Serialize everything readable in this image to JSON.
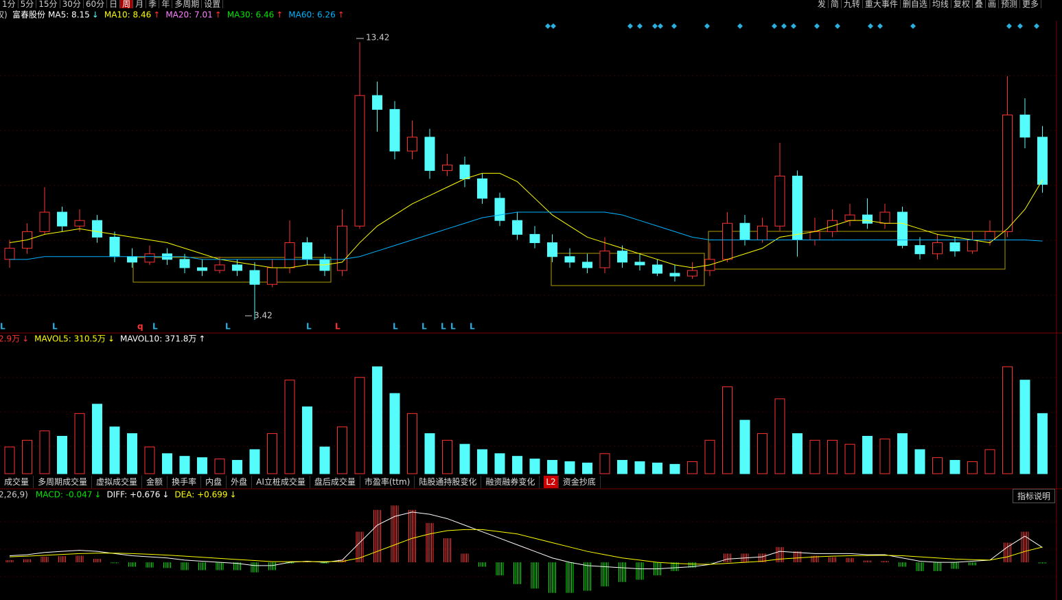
{
  "toolbar": {
    "periods": [
      "1分",
      "5分",
      "15分",
      "30分",
      "60分",
      "日",
      "周",
      "月",
      "季",
      "年",
      "多周期",
      "设置"
    ],
    "tools": [
      "发",
      "简",
      "九转",
      "重大事件",
      "删自选",
      "均线",
      "复权",
      "叠",
      "画",
      "预测",
      "更多"
    ]
  },
  "header": {
    "prefix": "权)",
    "name": "富春股份",
    "ma": [
      {
        "text": "MA5: 8.15",
        "arrow": "↓",
        "color": "#ffffff",
        "arrow_color": "#54fcfc"
      },
      {
        "text": "MA10: 8.46",
        "arrow": "↑",
        "color": "#ffff00",
        "arrow_color": "#ff3232"
      },
      {
        "text": "MA20: 7.01",
        "arrow": "↑",
        "color": "#ff80ff",
        "arrow_color": "#ff3232"
      },
      {
        "text": "MA30: 6.46",
        "arrow": "↑",
        "color": "#00e600",
        "arrow_color": "#ff3232"
      },
      {
        "text": "MA60: 6.26",
        "arrow": "↑",
        "color": "#00b4ff",
        "arrow_color": "#ff3232"
      }
    ]
  },
  "annotations": {
    "high": "13.42",
    "low": "3.42",
    "signals": [
      "L",
      "L",
      "q",
      "L",
      "L",
      "L",
      "L",
      "L",
      "L",
      "L",
      "L",
      "L"
    ]
  },
  "volume_header": [
    {
      "text": "2.9万",
      "arrow": "↓",
      "color": "#ff3232"
    },
    {
      "text": "MAVOL5: 310.5万",
      "arrow": "↓",
      "color": "#ffff00"
    },
    {
      "text": "MAVOL10: 371.8万",
      "arrow": "↑",
      "color": "#ffffff"
    }
  ],
  "tabs": [
    "成交量",
    "多周期成交量",
    "虚拟成交量",
    "金额",
    "换手率",
    "内盘",
    "外盘",
    "AI立桩成交量",
    "盘后成交量",
    "市盈率(ttm)",
    "陆股通持股变化",
    "融资融券变化",
    "L2",
    "资金抄底"
  ],
  "indicator_help": "指标说明",
  "macd_header": [
    {
      "text": "2,26,9)",
      "color": "#cccccc"
    },
    {
      "text": "MACD: -0.047",
      "arrow": "↓",
      "color": "#00e600"
    },
    {
      "text": "DIFF: +0.676",
      "arrow": "↓",
      "color": "#ffffff"
    },
    {
      "text": "DEA: +0.699",
      "arrow": "↓",
      "color": "#ffff00"
    }
  ],
  "chart_data": [
    {
      "type": "candlestick",
      "ylim": [
        3.0,
        14.0
      ],
      "up_color": "#ff3232",
      "down_color": "#54fcfc",
      "open": [
        5.6,
        6.0,
        6.6,
        7.3,
        6.8,
        7.0,
        6.4,
        5.7,
        5.5,
        5.8,
        5.6,
        5.3,
        5.2,
        5.4,
        5.2,
        4.7,
        5.3,
        6.2,
        5.6,
        5.2,
        6.8,
        11.5,
        11.0,
        9.5,
        10.0,
        8.8,
        9.0,
        8.5,
        7.8,
        7.0,
        6.5,
        6.2,
        5.7,
        5.5,
        5.3,
        5.9,
        5.5,
        5.4,
        5.1,
        5.0,
        5.2,
        5.6,
        6.9,
        6.3,
        6.8,
        8.6,
        6.3,
        6.6,
        7.0,
        7.2,
        6.9,
        7.3,
        6.1,
        5.8,
        6.2,
        5.9,
        6.3,
        6.6,
        10.8,
        10.0
      ],
      "high": [
        6.3,
        6.9,
        8.2,
        7.5,
        7.4,
        7.2,
        6.6,
        6.0,
        6.1,
        6.0,
        5.8,
        5.6,
        5.7,
        5.6,
        5.5,
        5.6,
        7.0,
        6.4,
        5.8,
        7.4,
        13.42,
        12.0,
        11.3,
        10.6,
        10.3,
        9.4,
        9.3,
        8.7,
        8.0,
        7.3,
        6.8,
        6.5,
        6.0,
        5.8,
        6.4,
        6.1,
        5.8,
        5.6,
        5.4,
        5.5,
        6.2,
        7.3,
        7.2,
        7.1,
        9.8,
        8.8,
        7.1,
        7.4,
        7.6,
        7.8,
        7.6,
        7.5,
        6.4,
        6.5,
        6.4,
        6.6,
        7.0,
        12.2,
        11.4,
        10.4
      ],
      "low": [
        5.3,
        5.8,
        6.5,
        6.6,
        6.6,
        6.2,
        5.5,
        5.3,
        5.4,
        5.4,
        5.1,
        5.0,
        5.1,
        5.0,
        3.42,
        4.6,
        5.1,
        5.4,
        5.0,
        5.0,
        6.7,
        10.2,
        9.2,
        9.2,
        8.5,
        8.6,
        8.2,
        7.6,
        6.8,
        6.3,
        6.0,
        5.5,
        5.3,
        5.1,
        5.1,
        5.3,
        5.2,
        5.0,
        4.8,
        4.9,
        5.0,
        5.5,
        6.1,
        6.2,
        6.6,
        5.7,
        6.1,
        6.4,
        6.8,
        6.7,
        6.7,
        6.0,
        5.6,
        5.6,
        5.7,
        5.8,
        6.1,
        6.4,
        9.6,
        8.0
      ],
      "close": [
        6.0,
        6.6,
        7.3,
        6.8,
        7.0,
        6.4,
        5.7,
        5.5,
        5.8,
        5.6,
        5.3,
        5.2,
        5.4,
        5.2,
        4.7,
        5.3,
        6.2,
        5.6,
        5.2,
        6.8,
        11.5,
        11.0,
        9.5,
        10.0,
        8.8,
        9.0,
        8.5,
        7.8,
        7.0,
        6.5,
        6.2,
        5.7,
        5.5,
        5.3,
        5.9,
        5.5,
        5.4,
        5.1,
        5.0,
        5.2,
        5.6,
        6.9,
        6.3,
        6.8,
        8.6,
        6.3,
        6.6,
        7.0,
        7.2,
        6.9,
        7.3,
        6.1,
        5.8,
        6.2,
        5.9,
        6.3,
        6.6,
        10.8,
        10.0,
        8.3
      ],
      "series": [
        {
          "color": "#ffff00",
          "values": [
            6.2,
            6.3,
            6.5,
            6.6,
            6.7,
            6.6,
            6.5,
            6.4,
            6.3,
            6.2,
            6.0,
            5.8,
            5.6,
            5.5,
            5.4,
            5.3,
            5.3,
            5.4,
            5.4,
            5.5,
            6.2,
            6.8,
            7.2,
            7.6,
            7.9,
            8.2,
            8.5,
            8.7,
            8.7,
            8.4,
            7.8,
            7.2,
            6.8,
            6.4,
            6.2,
            6.0,
            5.8,
            5.6,
            5.4,
            5.3,
            5.4,
            5.6,
            5.8,
            6.0,
            6.4,
            6.5,
            6.6,
            6.8,
            7.0,
            7.0,
            6.9,
            6.9,
            6.7,
            6.5,
            6.4,
            6.3,
            6.2,
            6.7,
            7.4,
            8.46
          ]
        },
        {
          "color": "#00b4ff",
          "values": [
            5.6,
            5.6,
            5.7,
            5.7,
            5.7,
            5.7,
            5.7,
            5.7,
            5.7,
            5.7,
            5.7,
            5.6,
            5.6,
            5.6,
            5.6,
            5.6,
            5.6,
            5.6,
            5.6,
            5.6,
            5.7,
            5.9,
            6.1,
            6.3,
            6.5,
            6.7,
            6.9,
            7.1,
            7.2,
            7.3,
            7.3,
            7.3,
            7.3,
            7.3,
            7.3,
            7.2,
            7.0,
            6.8,
            6.6,
            6.4,
            6.3,
            6.3,
            6.3,
            6.3,
            6.3,
            6.3,
            6.3,
            6.3,
            6.3,
            6.3,
            6.3,
            6.3,
            6.3,
            6.3,
            6.3,
            6.3,
            6.3,
            6.3,
            6.3,
            6.26
          ]
        }
      ]
    },
    {
      "type": "bar",
      "ylim": [
        0,
        950
      ],
      "values": [
        200,
        250,
        320,
        280,
        450,
        520,
        350,
        300,
        200,
        150,
        130,
        120,
        110,
        100,
        180,
        300,
        700,
        500,
        200,
        350,
        720,
        800,
        600,
        450,
        300,
        250,
        220,
        180,
        150,
        130,
        110,
        100,
        90,
        80,
        150,
        100,
        90,
        80,
        70,
        90,
        250,
        650,
        400,
        300,
        560,
        300,
        250,
        250,
        220,
        280,
        260,
        300,
        180,
        120,
        100,
        90,
        180,
        800,
        700,
        450
      ]
    },
    {
      "type": "macd",
      "ylim": [
        -1.6,
        2.8
      ],
      "up_color": "#ff3232",
      "down_color": "#00e600",
      "values": [
        0.1,
        0.14,
        0.26,
        0.28,
        0.3,
        0.16,
        -0.04,
        -0.2,
        -0.24,
        -0.26,
        -0.36,
        -0.36,
        -0.36,
        -0.36,
        -0.46,
        -0.36,
        -0.06,
        0.04,
        -0.06,
        0.12,
        1.4,
        2.4,
        2.6,
        2.4,
        1.8,
        1.1,
        0.4,
        -0.2,
        -0.6,
        -1.0,
        -1.2,
        -1.4,
        -1.4,
        -1.3,
        -1.1,
        -0.9,
        -0.8,
        -0.6,
        -0.4,
        -0.24,
        -0.02,
        0.4,
        0.4,
        0.4,
        0.7,
        0.5,
        0.3,
        0.24,
        0.2,
        0.08,
        0.06,
        -0.2,
        -0.4,
        -0.4,
        -0.3,
        -0.14,
        0.0,
        0.9,
        1.4,
        -0.047
      ],
      "series": [
        {
          "color": "#ffffff",
          "values": [
            0.3,
            0.35,
            0.45,
            0.5,
            0.55,
            0.5,
            0.4,
            0.3,
            0.25,
            0.2,
            0.1,
            0.05,
            0.0,
            -0.05,
            -0.15,
            -0.15,
            0.0,
            0.05,
            0.0,
            0.1,
            0.9,
            1.7,
            2.1,
            2.3,
            2.2,
            2.0,
            1.7,
            1.4,
            1.1,
            0.8,
            0.5,
            0.2,
            0.0,
            -0.15,
            -0.2,
            -0.25,
            -0.3,
            -0.3,
            -0.25,
            -0.2,
            -0.1,
            0.15,
            0.2,
            0.25,
            0.5,
            0.45,
            0.4,
            0.4,
            0.4,
            0.35,
            0.35,
            0.2,
            0.05,
            0.0,
            0.0,
            0.05,
            0.1,
            0.7,
            1.2,
            0.676
          ]
        },
        {
          "color": "#ffff00",
          "values": [
            0.25,
            0.28,
            0.32,
            0.36,
            0.4,
            0.42,
            0.42,
            0.4,
            0.37,
            0.33,
            0.28,
            0.23,
            0.18,
            0.13,
            0.08,
            0.03,
            0.03,
            0.03,
            0.03,
            0.04,
            0.2,
            0.5,
            0.8,
            1.1,
            1.3,
            1.45,
            1.5,
            1.5,
            1.4,
            1.3,
            1.1,
            0.9,
            0.7,
            0.5,
            0.35,
            0.2,
            0.1,
            0.0,
            -0.05,
            -0.08,
            -0.09,
            -0.05,
            0.0,
            0.05,
            0.15,
            0.2,
            0.25,
            0.28,
            0.3,
            0.31,
            0.32,
            0.3,
            0.25,
            0.2,
            0.15,
            0.12,
            0.1,
            0.25,
            0.5,
            0.699
          ]
        }
      ]
    }
  ]
}
